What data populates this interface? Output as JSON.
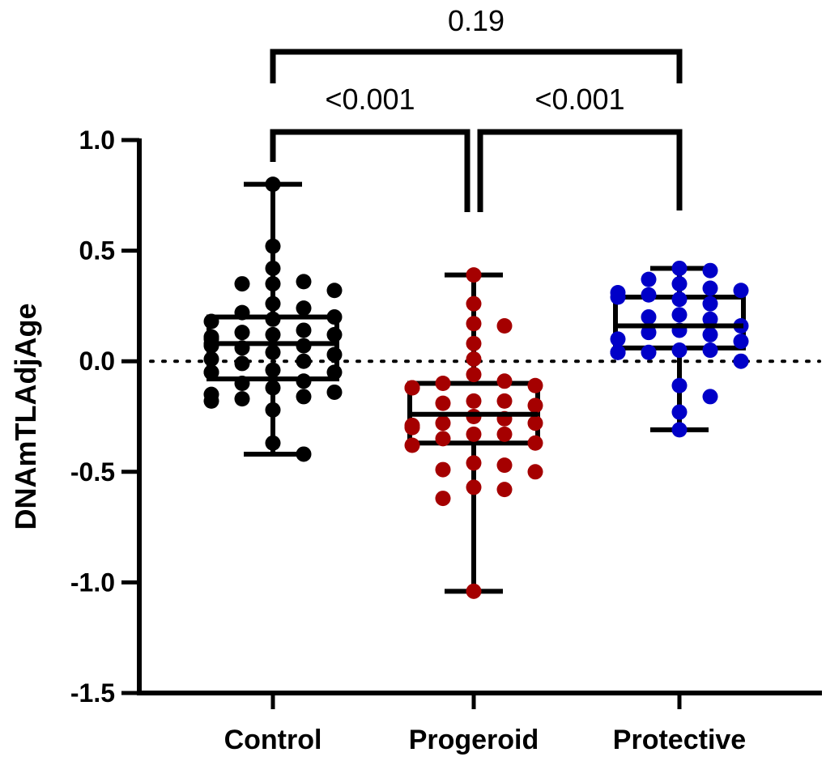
{
  "chart_data": {
    "type": "box",
    "title": "",
    "xlabel": "",
    "ylabel": "DNAmTLAdjAge",
    "ylim": [
      -1.5,
      1.0
    ],
    "yticks": [
      1.0,
      0.5,
      0.0,
      -0.5,
      -1.0,
      -1.5
    ],
    "ytick_labels": [
      "1.0",
      "0.5",
      "0.0",
      "-0.5",
      "-1.0",
      "-1.5"
    ],
    "reference_line": {
      "y": 0.0,
      "style": "dotted"
    },
    "categories": [
      "Control",
      "Progeroid",
      "Protective"
    ],
    "series": [
      {
        "name": "Control",
        "color": "#000000",
        "box": {
          "min": -0.42,
          "q1": -0.08,
          "median": 0.08,
          "q3": 0.2,
          "max": 0.8
        },
        "points": [
          0.8,
          0.52,
          0.42,
          0.36,
          0.35,
          0.35,
          0.32,
          0.26,
          0.24,
          0.22,
          0.2,
          0.19,
          0.18,
          0.14,
          0.13,
          0.12,
          0.12,
          0.11,
          0.1,
          0.08,
          0.07,
          0.07,
          0.06,
          0.04,
          0.03,
          0.01,
          0.0,
          -0.01,
          -0.04,
          -0.05,
          -0.05,
          -0.05,
          -0.09,
          -0.1,
          -0.12,
          -0.14,
          -0.15,
          -0.16,
          -0.17,
          -0.18,
          -0.22,
          -0.37,
          -0.42
        ]
      },
      {
        "name": "Progeroid",
        "color": "#a50000",
        "box": {
          "min": -1.04,
          "q1": -0.37,
          "median": -0.24,
          "q3": -0.1,
          "max": 0.39
        },
        "points": [
          0.39,
          0.26,
          0.17,
          0.16,
          0.08,
          0.01,
          -0.06,
          -0.09,
          -0.1,
          -0.11,
          -0.12,
          -0.12,
          -0.18,
          -0.18,
          -0.19,
          -0.2,
          -0.25,
          -0.26,
          -0.28,
          -0.28,
          -0.29,
          -0.3,
          -0.33,
          -0.33,
          -0.35,
          -0.37,
          -0.38,
          -0.46,
          -0.47,
          -0.49,
          -0.5,
          -0.57,
          -0.58,
          -0.62,
          -1.04
        ]
      },
      {
        "name": "Protective",
        "color": "#0000c8",
        "box": {
          "min": -0.31,
          "q1": 0.06,
          "median": 0.16,
          "q3": 0.29,
          "max": 0.42
        },
        "points": [
          0.42,
          0.41,
          0.37,
          0.35,
          0.33,
          0.32,
          0.31,
          0.3,
          0.29,
          0.28,
          0.26,
          0.21,
          0.2,
          0.19,
          0.16,
          0.14,
          0.13,
          0.12,
          0.1,
          0.09,
          0.05,
          0.05,
          0.04,
          0.04,
          0.04,
          0.04,
          0.0,
          -0.11,
          -0.16,
          -0.23,
          -0.31
        ]
      }
    ],
    "comparisons": [
      {
        "from": "Control",
        "to": "Progeroid",
        "label": "<0.001"
      },
      {
        "from": "Progeroid",
        "to": "Protective",
        "label": "<0.001"
      },
      {
        "from": "Control",
        "to": "Protective",
        "label": "0.19"
      }
    ]
  }
}
